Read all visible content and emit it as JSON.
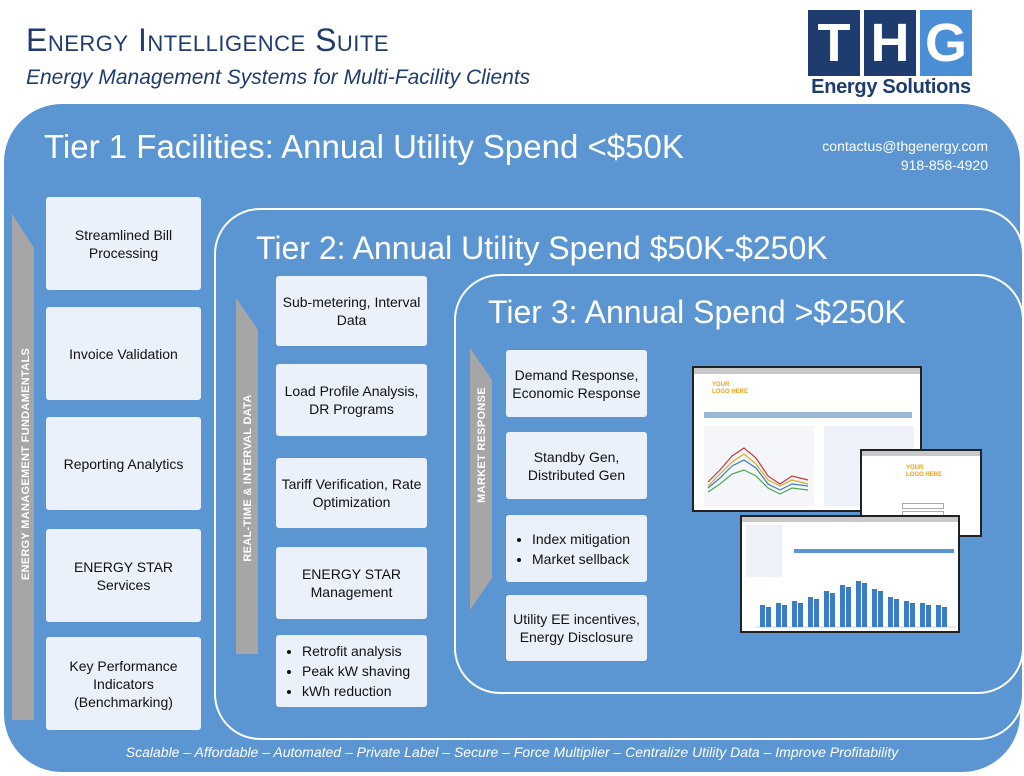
{
  "header": {
    "title": "Energy Intelligence Suite",
    "subtitle": "Energy Management Systems for Multi-Facility Clients"
  },
  "logo": {
    "letters": [
      "T",
      "H",
      "G"
    ],
    "tagline": "Energy Solutions"
  },
  "contact": {
    "email": "contactus@thgenergy.com",
    "phone": "918-858-4920"
  },
  "tier1": {
    "title": "Tier 1 Facilities: Annual Utility Spend <$50K",
    "arrow_label": "ENERGY MANAGEMENT FUNDAMENTALS",
    "items": [
      "Streamlined Bill Processing",
      "Invoice Validation",
      "Reporting Analytics",
      "ENERGY STAR Services",
      "Key Performance Indicators (Benchmarking)"
    ]
  },
  "tier2": {
    "title": "Tier 2: Annual Utility Spend $50K-$250K",
    "arrow_label": "REAL-TIME & INTERVAL DATA",
    "items": [
      "Sub-metering, Interval Data",
      "Load Profile Analysis, DR Programs",
      "Tariff Verification, Rate Optimization",
      "ENERGY STAR Management"
    ],
    "bullets": [
      "Retrofit analysis",
      "Peak kW shaving",
      "kWh reduction"
    ]
  },
  "tier3": {
    "title": "Tier 3: Annual Spend >$250K",
    "arrow_label": "MARKET RESPONSE",
    "items": [
      "Demand Response, Economic Response",
      "Standby Gen, Distributed Gen"
    ],
    "bullets": [
      "Index mitigation",
      "Market sellback"
    ],
    "last_item": "Utility EE incentives, Energy Disclosure"
  },
  "screenshots": {
    "logo_text": "YOUR LOGO HERE"
  },
  "footer": {
    "tagline": "Scalable – Affordable – Automated – Private Label – Secure – Force Multiplier – Centralize Utility Data – Improve Profitability"
  },
  "colors": {
    "tier_fill": "#5b96d2",
    "box_fill": "#eaf1fa",
    "title_navy": "#1f3c6e",
    "logo_blue": "#4a8fd6",
    "arrow_gray": "#a6a6a6"
  }
}
